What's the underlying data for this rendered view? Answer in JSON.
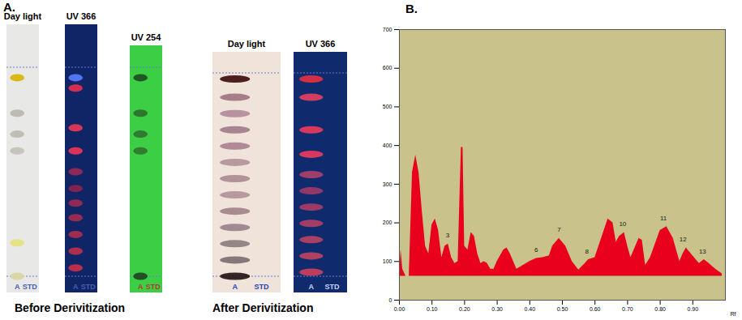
{
  "panel_a": {
    "label": "A.",
    "groups": [
      {
        "caption": "Before Derivitization",
        "plates": [
          {
            "title": "Day light",
            "color": "#e8e8e6",
            "lanes": [
              "A",
              "STD"
            ],
            "lane_color": "#4a5fb0",
            "bands": [
              {
                "rf": 0.95,
                "color": "#d8b400"
              },
              {
                "rf": 0.78,
                "color": "#b9b4ae"
              },
              {
                "rf": 0.68,
                "color": "#bdb8b1"
              },
              {
                "rf": 0.6,
                "color": "#c4bfb8"
              },
              {
                "rf": 0.16,
                "color": "#e6e27a"
              },
              {
                "rf": 0.0,
                "color": "#d9d6a0"
              }
            ]
          },
          {
            "title": "UV 366",
            "color": "#0f2566",
            "lanes": [
              "A",
              "STD"
            ],
            "lane_color": "#4a5fb0",
            "bands": [
              {
                "rf": 0.95,
                "color": "#5a7dff"
              },
              {
                "rf": 0.9,
                "color": "#e8304f"
              },
              {
                "rf": 0.71,
                "color": "#ec3a55"
              },
              {
                "rf": 0.6,
                "color": "#f0345a"
              },
              {
                "rf": 0.5,
                "color": "#9a2a55"
              },
              {
                "rf": 0.42,
                "color": "#8c2550"
              },
              {
                "rf": 0.35,
                "color": "#9e2a52"
              },
              {
                "rf": 0.28,
                "color": "#a82c50"
              },
              {
                "rf": 0.2,
                "color": "#b02e50"
              },
              {
                "rf": 0.12,
                "color": "#c0304c"
              },
              {
                "rf": 0.04,
                "color": "#d0304a"
              }
            ]
          },
          {
            "title": "UV 254",
            "color": "#3ccf45",
            "lanes": [
              "A",
              "STD"
            ],
            "lane_color": "#c0303a",
            "bands": [
              {
                "rf": 0.95,
                "color": "#1d4a1f"
              },
              {
                "rf": 0.78,
                "color": "#2c6a2e"
              },
              {
                "rf": 0.68,
                "color": "#2f702f"
              },
              {
                "rf": 0.6,
                "color": "#2f722f"
              },
              {
                "rf": 0.0,
                "color": "#1f3f20"
              }
            ]
          }
        ]
      },
      {
        "caption": "After Derivitization",
        "plates": [
          {
            "title": "Day light",
            "color": "#efe3da",
            "lanes": [
              "A",
              "STD"
            ],
            "lane_color": "#2a3fc0",
            "bands": [
              {
                "rf": 0.97,
                "color": "#3a0808"
              },
              {
                "rf": 0.88,
                "color": "#a07080"
              },
              {
                "rf": 0.8,
                "color": "#b08898"
              },
              {
                "rf": 0.72,
                "color": "#a07888"
              },
              {
                "rf": 0.64,
                "color": "#a88090"
              },
              {
                "rf": 0.56,
                "color": "#b09098"
              },
              {
                "rf": 0.48,
                "color": "#a88890"
              },
              {
                "rf": 0.4,
                "color": "#b09098"
              },
              {
                "rf": 0.32,
                "color": "#a08088"
              },
              {
                "rf": 0.24,
                "color": "#98808a"
              },
              {
                "rf": 0.16,
                "color": "#8a7a80"
              },
              {
                "rf": 0.08,
                "color": "#7a6a70"
              },
              {
                "rf": 0.0,
                "color": "#201010"
              }
            ]
          },
          {
            "title": "UV 366",
            "color": "#102a6e",
            "lanes": [
              "A",
              "STD"
            ],
            "lane_color": "#c8d0ff",
            "bands": [
              {
                "rf": 0.97,
                "color": "#e83040"
              },
              {
                "rf": 0.88,
                "color": "#e84060"
              },
              {
                "rf": 0.72,
                "color": "#ee3a5c"
              },
              {
                "rf": 0.6,
                "color": "#f03a5e"
              },
              {
                "rf": 0.5,
                "color": "#b0406a"
              },
              {
                "rf": 0.42,
                "color": "#a03a68"
              },
              {
                "rf": 0.34,
                "color": "#a83c66"
              },
              {
                "rf": 0.26,
                "color": "#b04064"
              },
              {
                "rf": 0.18,
                "color": "#b84262"
              },
              {
                "rf": 0.1,
                "color": "#c04460"
              },
              {
                "rf": 0.02,
                "color": "#d0405a"
              }
            ]
          }
        ]
      }
    ]
  },
  "chart_data": {
    "type": "area",
    "title": "B.",
    "x_label": "Rf",
    "xlim": [
      0,
      1.0
    ],
    "xticks": [
      {
        "value": 0,
        "label": "0.00"
      },
      {
        "value": 0.1,
        "label": "0.10"
      },
      {
        "value": 0.2,
        "label": "0.20"
      },
      {
        "value": 0.3,
        "label": "0.30"
      },
      {
        "value": 0.4,
        "label": "0.40"
      },
      {
        "value": 0.5,
        "label": "0.50"
      },
      {
        "value": 0.6,
        "label": "0.60"
      },
      {
        "value": 0.7,
        "label": "0.70"
      },
      {
        "value": 0.8,
        "label": "0.80"
      },
      {
        "value": 0.9,
        "label": "0.90"
      }
    ],
    "ylim": [
      0,
      700
    ],
    "yticks": [
      0,
      100,
      200,
      300,
      400,
      500,
      600,
      700
    ],
    "color": "#e8001c",
    "background": "#c9c28b",
    "baseline": 62,
    "x": [
      0.0,
      0.005,
      0.01,
      0.02,
      0.03,
      0.04,
      0.05,
      0.06,
      0.07,
      0.08,
      0.09,
      0.1,
      0.11,
      0.12,
      0.13,
      0.14,
      0.15,
      0.16,
      0.17,
      0.18,
      0.185,
      0.19,
      0.195,
      0.2,
      0.21,
      0.22,
      0.23,
      0.24,
      0.25,
      0.26,
      0.27,
      0.28,
      0.29,
      0.3,
      0.32,
      0.33,
      0.34,
      0.36,
      0.38,
      0.4,
      0.42,
      0.44,
      0.46,
      0.47,
      0.49,
      0.51,
      0.53,
      0.55,
      0.57,
      0.58,
      0.6,
      0.62,
      0.64,
      0.655,
      0.665,
      0.675,
      0.69,
      0.7,
      0.71,
      0.72,
      0.735,
      0.745,
      0.755,
      0.77,
      0.8,
      0.82,
      0.84,
      0.86,
      0.87,
      0.88,
      0.9,
      0.92,
      0.935,
      0.95,
      0.97,
      0.99
    ],
    "values": [
      62,
      130,
      80,
      62,
      62,
      330,
      375,
      330,
      230,
      140,
      120,
      195,
      210,
      180,
      110,
      140,
      145,
      110,
      95,
      100,
      250,
      395,
      395,
      140,
      130,
      175,
      165,
      120,
      95,
      100,
      95,
      80,
      80,
      100,
      130,
      135,
      120,
      80,
      90,
      100,
      108,
      110,
      115,
      140,
      160,
      140,
      100,
      78,
      95,
      105,
      110,
      160,
      210,
      200,
      150,
      165,
      175,
      140,
      110,
      130,
      160,
      155,
      90,
      110,
      180,
      190,
      160,
      100,
      120,
      135,
      115,
      95,
      105,
      95,
      80,
      68
    ],
    "peak_labels": [
      {
        "label": "3",
        "x": 0.148,
        "y": 150
      },
      {
        "label": "6",
        "x": 0.42,
        "y": 113
      },
      {
        "label": "7",
        "x": 0.49,
        "y": 165
      },
      {
        "label": "8",
        "x": 0.575,
        "y": 110
      },
      {
        "label": "10",
        "x": 0.685,
        "y": 180
      },
      {
        "label": "11",
        "x": 0.81,
        "y": 195
      },
      {
        "label": "12",
        "x": 0.87,
        "y": 140
      },
      {
        "label": "13",
        "x": 0.93,
        "y": 110
      }
    ]
  }
}
